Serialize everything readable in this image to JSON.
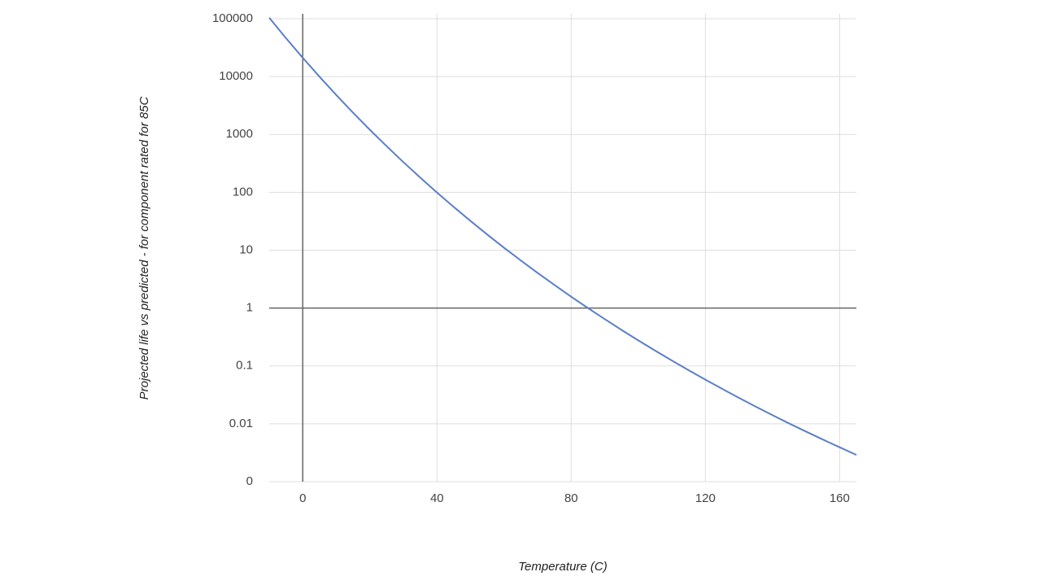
{
  "chart_data": {
    "type": "line",
    "x_label": "Temperature (C)",
    "y_label": "Projected life vs predicted - for component rated for 85C",
    "x": [
      -10,
      -5,
      0,
      5,
      10,
      15,
      20,
      25,
      30,
      35,
      40,
      45,
      50,
      55,
      60,
      65,
      70,
      75,
      80,
      85,
      90,
      95,
      100,
      105,
      110,
      115,
      120,
      125,
      130,
      135,
      140,
      145,
      150,
      155,
      160,
      165
    ],
    "series": [
      {
        "color": "#5b7fc7",
        "values": [
          104000,
          46100,
          21100,
          9930,
          4800,
          2370,
          1205,
          626,
          332,
          180,
          99.3,
          55.9,
          32.0,
          18.6,
          11.0,
          6.64,
          4.05,
          2.51,
          1.57,
          1,
          0.644,
          0.419,
          0.276,
          0.184,
          0.124,
          0.0843,
          0.0579,
          0.0402,
          0.0281,
          0.0198,
          0.0141,
          0.0101,
          0.00734,
          0.00535,
          0.00393,
          0.0029
        ]
      }
    ],
    "xlim": [
      -10,
      165
    ],
    "xticks": [
      0,
      40,
      80,
      120,
      160
    ],
    "ylim": [
      0.001,
      100000
    ],
    "log_y": true,
    "yticks": [
      {
        "value": 0.001,
        "label": "0"
      },
      0.01,
      0.1,
      1,
      10,
      100,
      1000,
      10000,
      100000
    ],
    "grid": true
  }
}
